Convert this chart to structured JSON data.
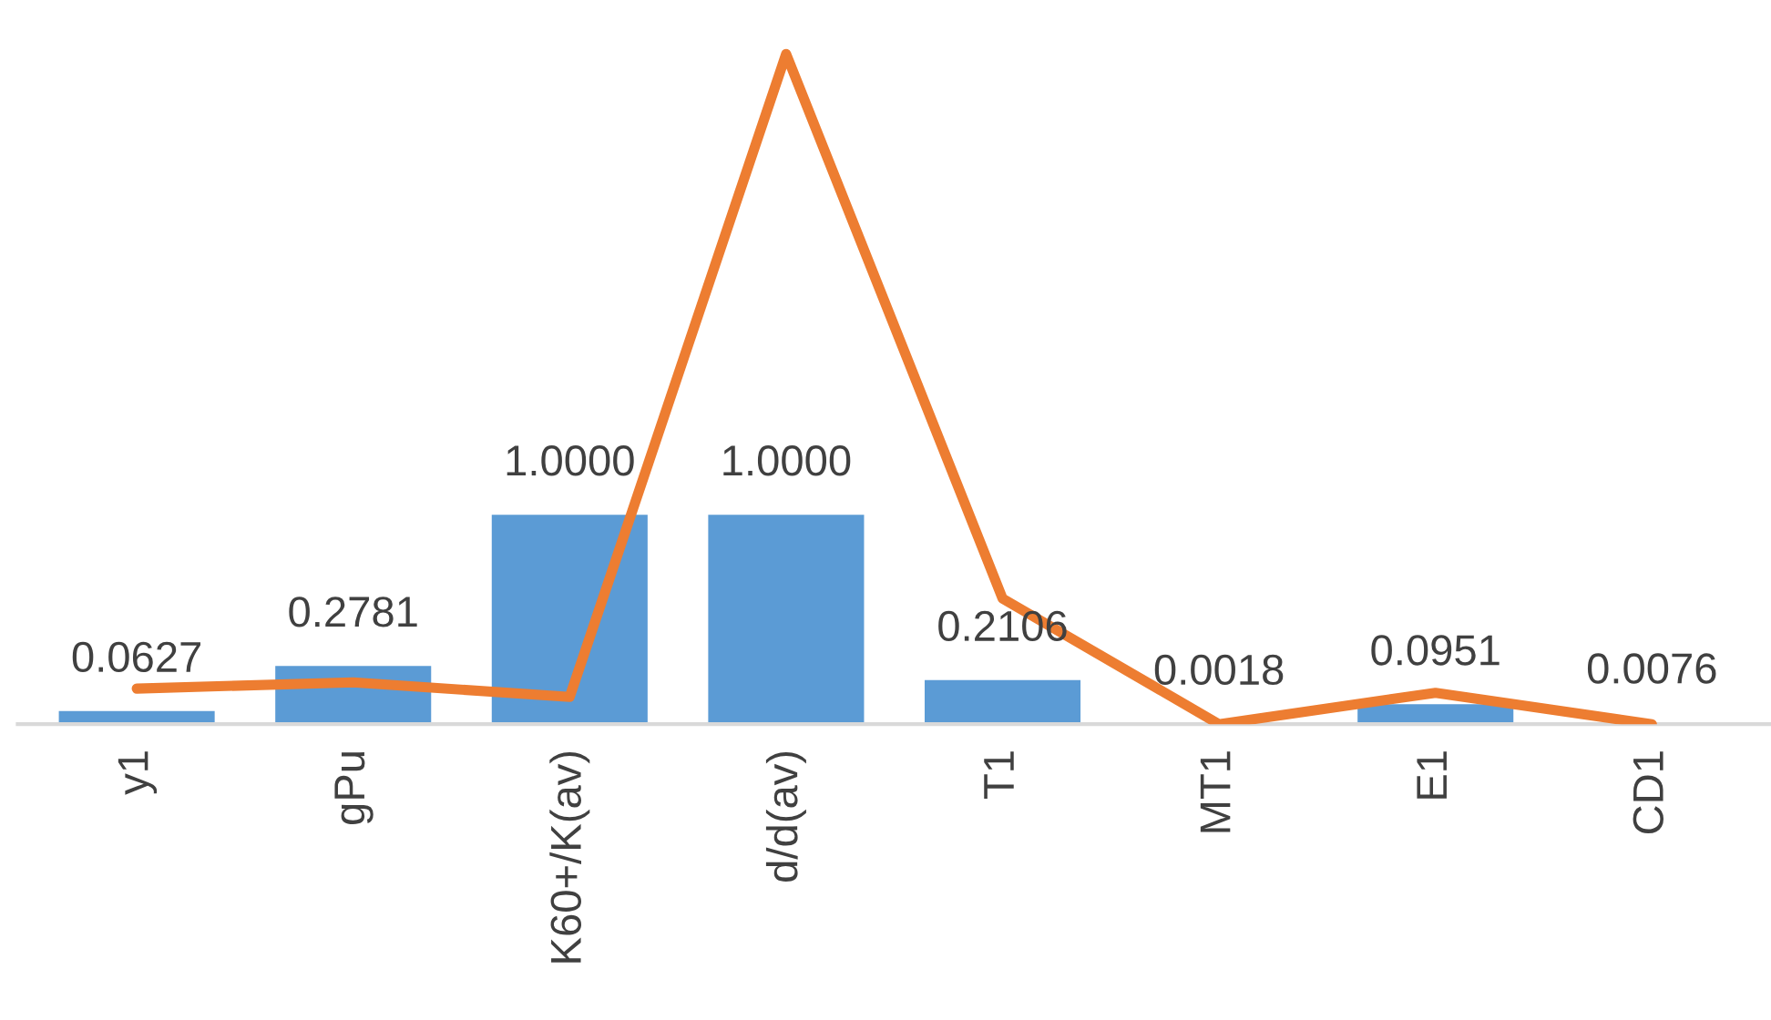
{
  "chart_data": {
    "type": "bar",
    "categories": [
      "y1",
      "gPu",
      "K60+/K(av)",
      "d/d(av)",
      "T1",
      "MT1",
      "E1",
      "CD1"
    ],
    "series": [
      {
        "color": "#5b9bd5",
        "values": [
          0.0627,
          0.2781,
          1.0,
          1.0,
          0.2106,
          0.0018,
          0.0951,
          0.0076
        ],
        "value_labels": [
          "0.0627",
          "0.2781",
          "1.0000",
          "1.0000",
          "0.2106",
          "0.0018",
          "0.0951",
          "0.0076"
        ]
      },
      {
        "type": "line",
        "color": "#ed7d31",
        "values": [
          0.17,
          0.2,
          0.13,
          3.2,
          0.6,
          0.0,
          0.15,
          0.0
        ]
      }
    ],
    "grid": false,
    "legend": false
  }
}
